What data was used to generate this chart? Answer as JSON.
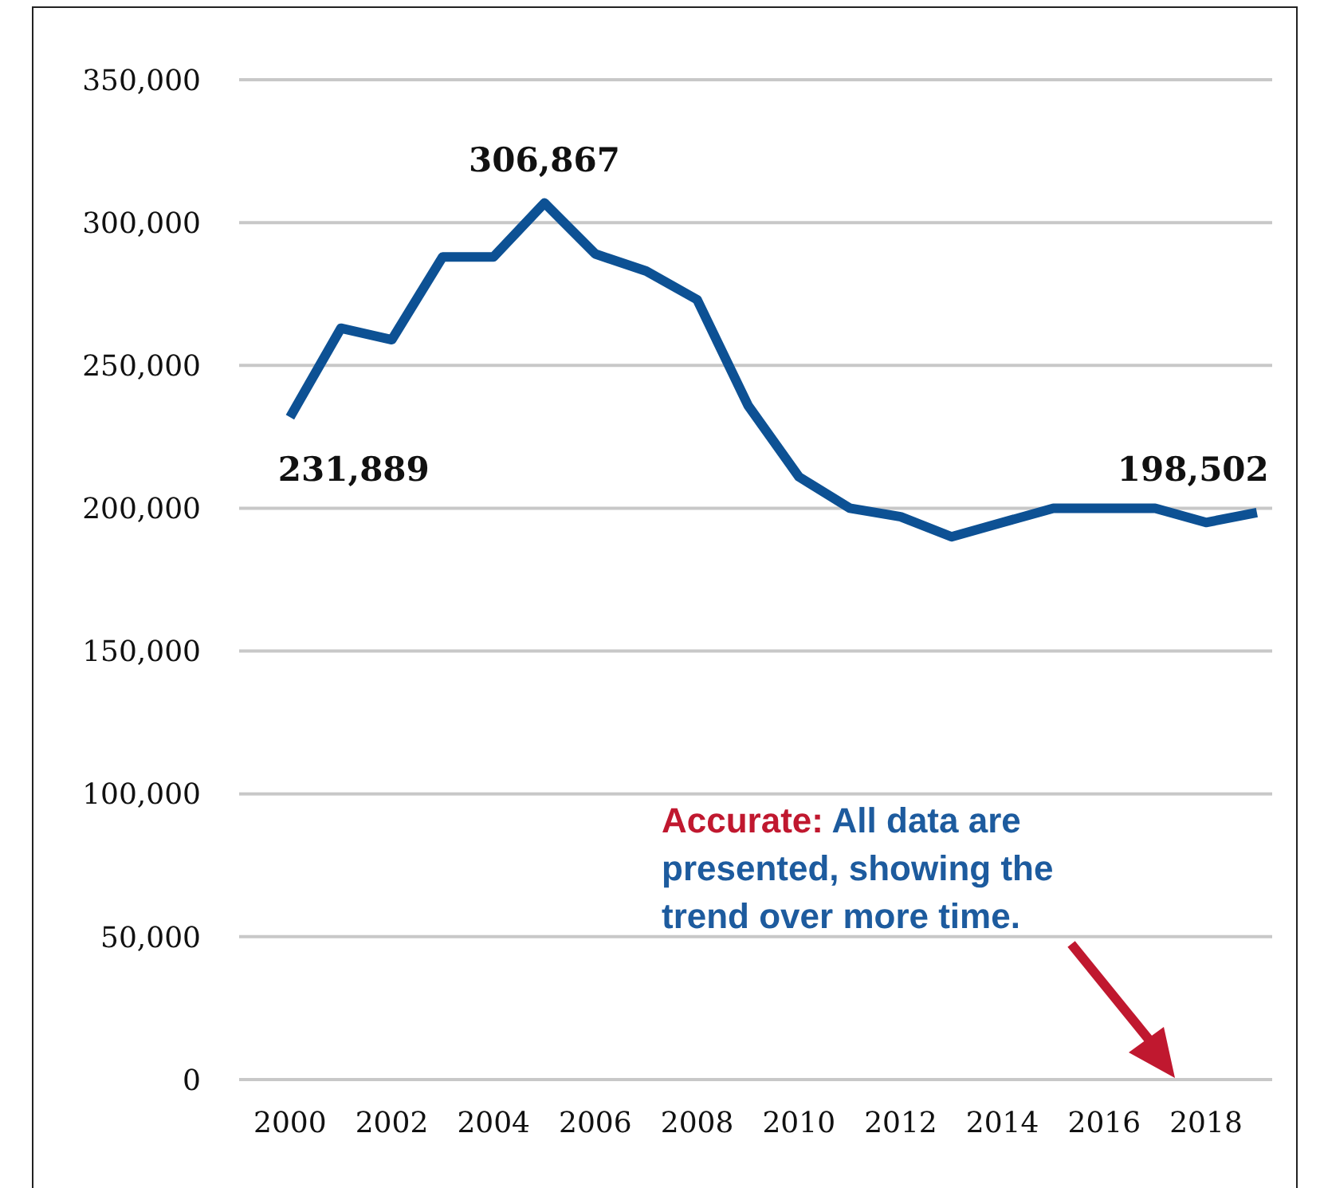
{
  "chart_data": {
    "type": "line",
    "x": [
      2000,
      2001,
      2002,
      2003,
      2004,
      2005,
      2006,
      2007,
      2008,
      2009,
      2010,
      2011,
      2012,
      2013,
      2014,
      2015,
      2016,
      2017,
      2018,
      2019
    ],
    "series": [
      {
        "color": "#0d5194",
        "values": [
          231889,
          263000,
          259000,
          288000,
          288000,
          306867,
          289000,
          283000,
          273000,
          236000,
          211000,
          200000,
          197000,
          190000,
          195000,
          200000,
          200000,
          200000,
          195000,
          198502
        ],
        "value_labels": [
          "231,889",
          null,
          null,
          null,
          null,
          "306,867",
          null,
          null,
          null,
          null,
          null,
          null,
          null,
          null,
          null,
          null,
          null,
          null,
          null,
          "198,502"
        ]
      }
    ],
    "xlim": [
      1999,
      2019.3
    ],
    "xticks": [
      2000,
      2002,
      2004,
      2006,
      2008,
      2010,
      2012,
      2014,
      2016,
      2018
    ],
    "ylim": [
      0,
      350000
    ],
    "yticks": [
      {
        "value": 0,
        "label": "0"
      },
      {
        "value": 50000,
        "label": "50,000"
      },
      {
        "value": 100000,
        "label": "100,000"
      },
      {
        "value": 150000,
        "label": "150,000"
      },
      {
        "value": 200000,
        "label": "200,000"
      },
      {
        "value": 250000,
        "label": "250,000"
      },
      {
        "value": 300000,
        "label": "300,000"
      },
      {
        "value": 350000,
        "label": "350,000"
      }
    ],
    "grid": "y",
    "marker": "none",
    "line_style": "solid",
    "annotations": [
      "Accurate:",
      "All data are presented, showing the trend over more time."
    ]
  }
}
